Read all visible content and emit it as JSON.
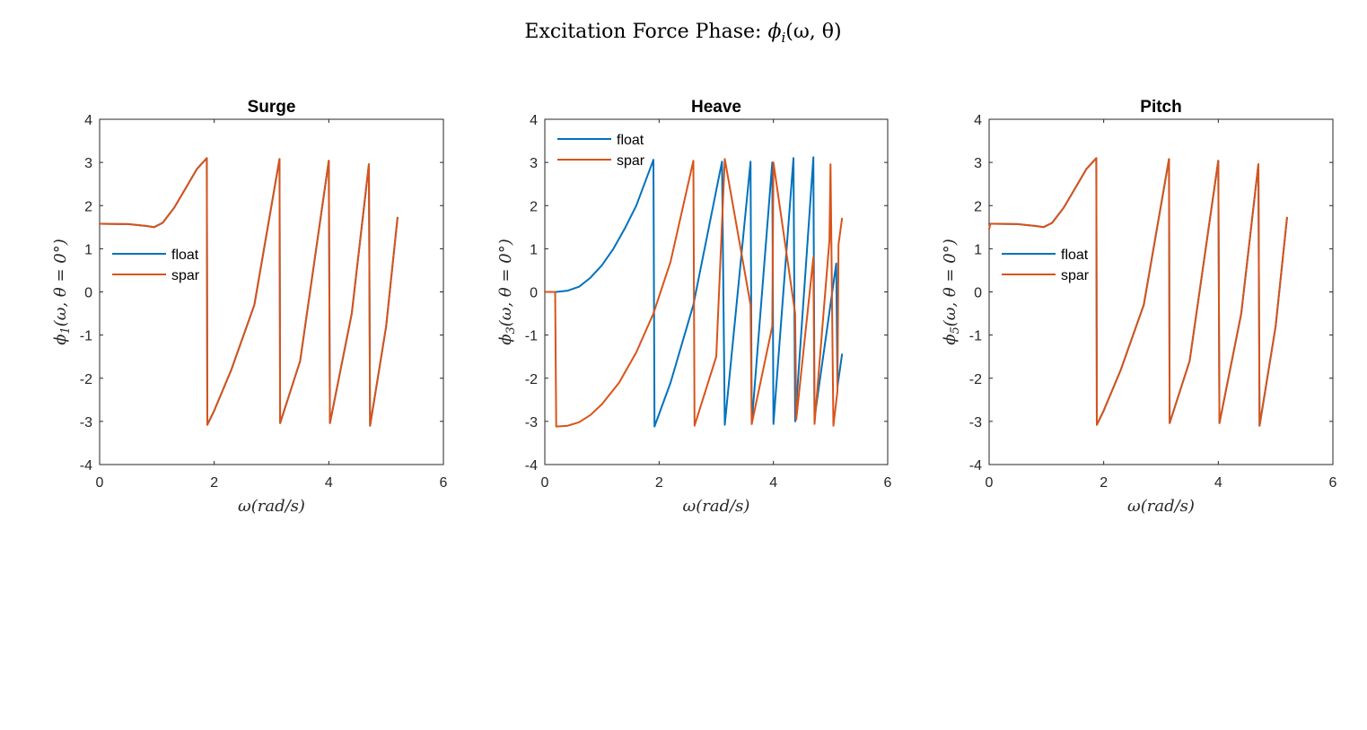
{
  "figure": {
    "suptitle_text": "Excitation Force Phase: ",
    "suptitle_math": "ϕ",
    "suptitle_sub": "i",
    "suptitle_args": "(ω, θ)"
  },
  "colors": {
    "float": "#0072BD",
    "spar": "#D95319",
    "axis": "#262626"
  },
  "chart_data": [
    {
      "type": "line",
      "title": "Surge",
      "xlabel": "ω(rad/s)",
      "ylabel": "ϕ1(ω, θ = 0°)",
      "xlim": [
        0,
        6
      ],
      "ylim": [
        -4,
        4
      ],
      "xticks": [
        0,
        2,
        4,
        6
      ],
      "yticks": [
        -4,
        -3,
        -2,
        -1,
        0,
        1,
        2,
        3,
        4
      ],
      "legend": {
        "position": "middle-left",
        "entries": [
          "float",
          "spar"
        ]
      },
      "series": [
        {
          "name": "float",
          "x": [
            0,
            0.5,
            0.8,
            0.95,
            1.1,
            1.3,
            1.5,
            1.7,
            1.87,
            1.88,
            2.0,
            2.3,
            2.7,
            3.14,
            3.15,
            3.5,
            4.0,
            4.02,
            4.4,
            4.7,
            4.72,
            5.0,
            5.2
          ],
          "y": [
            1.58,
            1.57,
            1.53,
            1.5,
            1.6,
            1.95,
            2.4,
            2.85,
            3.1,
            -3.08,
            -2.75,
            -1.8,
            -0.3,
            3.08,
            -3.04,
            -1.6,
            3.04,
            -3.04,
            -0.5,
            2.96,
            -3.1,
            -0.8,
            1.72
          ]
        },
        {
          "name": "spar",
          "x": [
            0,
            0.5,
            0.8,
            0.95,
            1.1,
            1.3,
            1.5,
            1.7,
            1.87,
            1.88,
            2.0,
            2.3,
            2.7,
            3.14,
            3.15,
            3.5,
            4.0,
            4.02,
            4.4,
            4.7,
            4.72,
            5.0,
            5.2
          ],
          "y": [
            1.58,
            1.57,
            1.53,
            1.5,
            1.6,
            1.95,
            2.4,
            2.85,
            3.1,
            -3.08,
            -2.75,
            -1.8,
            -0.3,
            3.08,
            -3.04,
            -1.6,
            3.04,
            -3.04,
            -0.5,
            2.96,
            -3.1,
            -0.8,
            1.72
          ]
        }
      ]
    },
    {
      "type": "line",
      "title": "Heave",
      "xlabel": "ω(rad/s)",
      "ylabel": "ϕ3(ω, θ = 0°)",
      "xlim": [
        0,
        6
      ],
      "ylim": [
        -4,
        4
      ],
      "xticks": [
        0,
        2,
        4,
        6
      ],
      "yticks": [
        -4,
        -3,
        -2,
        -1,
        0,
        1,
        2,
        3,
        4
      ],
      "legend": {
        "position": "top-left",
        "entries": [
          "float",
          "spar"
        ]
      },
      "series": [
        {
          "name": "float",
          "x": [
            0,
            0.2,
            0.4,
            0.6,
            0.8,
            1.0,
            1.2,
            1.4,
            1.6,
            1.9,
            1.92,
            2.2,
            2.6,
            3.1,
            3.15,
            3.6,
            3.62,
            3.98,
            4.0,
            4.35,
            4.38,
            4.7,
            4.72,
            5.1,
            5.12,
            5.2
          ],
          "y": [
            0,
            0,
            0.03,
            0.12,
            0.33,
            0.62,
            1.0,
            1.47,
            2.0,
            3.06,
            -3.12,
            -2.1,
            -0.3,
            3.02,
            -3.08,
            3.02,
            -3.06,
            3.0,
            -3.06,
            3.1,
            -3.0,
            3.12,
            -2.92,
            0.66,
            -2.2,
            -1.45
          ]
        },
        {
          "name": "spar",
          "x": [
            0,
            0.18,
            0.2,
            0.4,
            0.6,
            0.8,
            1.0,
            1.3,
            1.6,
            1.9,
            2.2,
            2.6,
            2.62,
            3.0,
            3.15,
            3.6,
            3.62,
            3.98,
            4.0,
            4.38,
            4.4,
            4.7,
            4.72,
            4.98,
            5.0,
            5.05,
            5.12,
            5.14,
            5.2
          ],
          "y": [
            0,
            0,
            -3.12,
            -3.1,
            -3.02,
            -2.85,
            -2.6,
            -2.1,
            -1.4,
            -0.5,
            0.7,
            3.04,
            -3.1,
            -1.5,
            3.08,
            -0.3,
            -3.06,
            -0.8,
            3.0,
            -0.5,
            -2.96,
            0.8,
            -3.06,
            1.2,
            2.96,
            -3.1,
            -2.3,
            1.1,
            1.7
          ]
        }
      ]
    },
    {
      "type": "line",
      "title": "Pitch",
      "xlabel": "ω(rad/s)",
      "ylabel": "ϕ5(ω, θ = 0°)",
      "xlim": [
        0,
        6
      ],
      "ylim": [
        -4,
        4
      ],
      "xticks": [
        0,
        2,
        4,
        6
      ],
      "yticks": [
        -4,
        -3,
        -2,
        -1,
        0,
        1,
        2,
        3,
        4
      ],
      "legend": {
        "position": "middle-left",
        "entries": [
          "float",
          "spar"
        ]
      },
      "series": [
        {
          "name": "float",
          "x": [
            0,
            0.5,
            0.8,
            0.95,
            1.1,
            1.3,
            1.5,
            1.7,
            1.87,
            1.88,
            2.0,
            2.3,
            2.7,
            3.14,
            3.15,
            3.5,
            4.0,
            4.02,
            4.4,
            4.7,
            4.72,
            5.0,
            5.2
          ],
          "y": [
            1.58,
            1.57,
            1.53,
            1.5,
            1.6,
            1.95,
            2.4,
            2.85,
            3.1,
            -3.08,
            -2.75,
            -1.8,
            -0.3,
            3.08,
            -3.04,
            -1.6,
            3.04,
            -3.04,
            -0.5,
            2.96,
            -3.1,
            -0.8,
            1.72
          ]
        },
        {
          "name": "spar",
          "x": [
            0,
            0.02,
            0.1,
            0.5,
            0.8,
            0.95,
            1.1,
            1.3,
            1.5,
            1.7,
            1.87,
            1.88,
            2.0,
            2.3,
            2.7,
            3.14,
            3.15,
            3.5,
            4.0,
            4.02,
            4.4,
            4.7,
            4.72,
            5.0,
            5.2
          ],
          "y": [
            1.45,
            1.58,
            1.58,
            1.57,
            1.53,
            1.5,
            1.6,
            1.95,
            2.4,
            2.85,
            3.1,
            -3.08,
            -2.75,
            -1.8,
            -0.3,
            3.08,
            -3.04,
            -1.6,
            3.04,
            -3.04,
            -0.5,
            2.96,
            -3.1,
            -0.8,
            1.72
          ]
        }
      ]
    }
  ]
}
